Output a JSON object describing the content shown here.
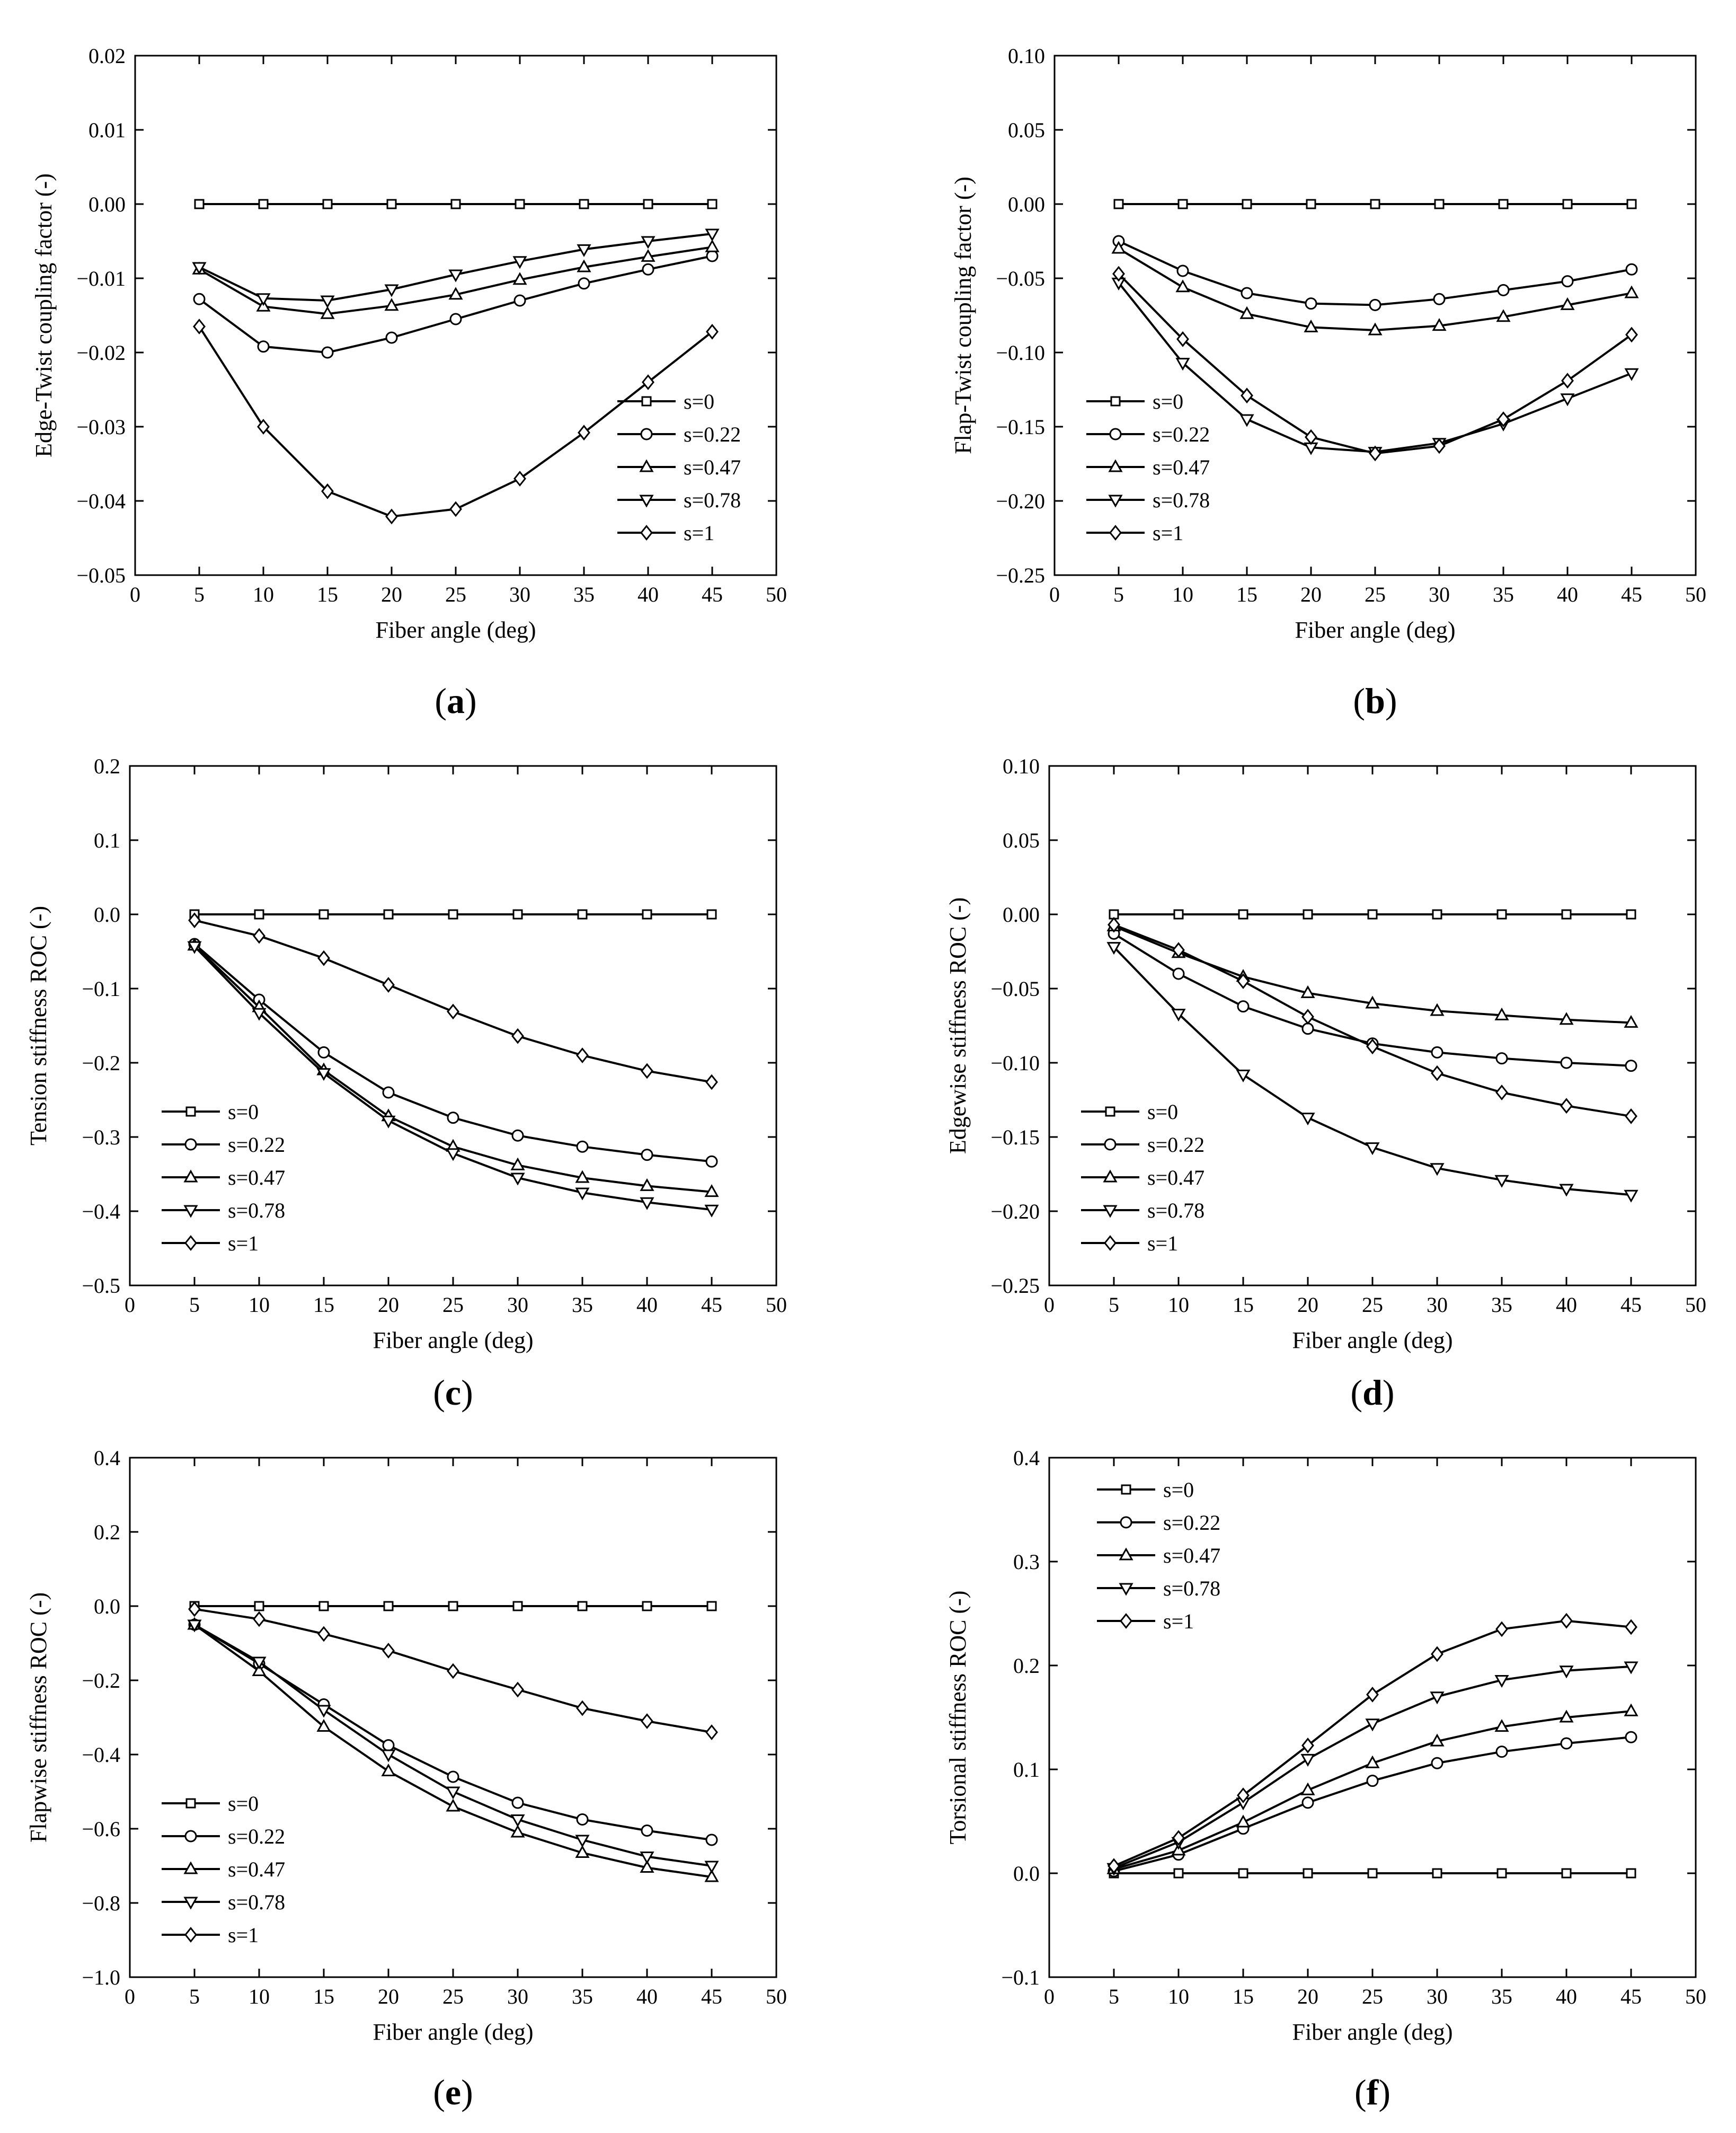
{
  "figure": {
    "series_names": [
      "s=0",
      "s=0.22",
      "s=0.47",
      "s=0.78",
      "s=1"
    ]
  },
  "chart_data": [
    {
      "id": "a",
      "type": "line",
      "panel_label": "a",
      "xlabel": "Fiber angle (deg)",
      "ylabel": "Edge-Twist coupling factor (-)",
      "xlim": [
        0,
        50
      ],
      "ylim": [
        -0.05,
        0.02
      ],
      "xticks": [
        "0",
        "5",
        "10",
        "15",
        "20",
        "25",
        "30",
        "35",
        "40",
        "45",
        "50"
      ],
      "yticks": [
        "0.02",
        "0.01",
        "0.00",
        "−0.01",
        "−0.02",
        "−0.03",
        "−0.04",
        "−0.05"
      ],
      "ytick_values": [
        0.02,
        0.01,
        0.0,
        -0.01,
        -0.02,
        -0.03,
        -0.04,
        -0.05
      ],
      "legend_position": "lower-right",
      "x": [
        5,
        10,
        15,
        20,
        25,
        30,
        35,
        40,
        45
      ],
      "series": [
        {
          "name": "s=0",
          "marker": "square",
          "values": [
            0.0,
            0.0,
            0.0,
            0.0,
            0.0,
            0.0,
            0.0,
            0.0,
            0.0
          ]
        },
        {
          "name": "s=0.22",
          "marker": "circle",
          "values": [
            -0.0128,
            -0.0192,
            -0.02,
            -0.018,
            -0.0155,
            -0.013,
            -0.0107,
            -0.0088,
            -0.007
          ]
        },
        {
          "name": "s=0.47",
          "marker": "triangle-up",
          "values": [
            -0.0088,
            -0.0138,
            -0.0148,
            -0.0137,
            -0.0122,
            -0.0102,
            -0.0085,
            -0.0071,
            -0.0058
          ]
        },
        {
          "name": "s=0.78",
          "marker": "triangle-down",
          "values": [
            -0.0085,
            -0.0127,
            -0.013,
            -0.0115,
            -0.0095,
            -0.0077,
            -0.0061,
            -0.005,
            -0.004
          ]
        },
        {
          "name": "s=1",
          "marker": "diamond",
          "values": [
            -0.0165,
            -0.03,
            -0.0387,
            -0.0421,
            -0.0411,
            -0.037,
            -0.0308,
            -0.024,
            -0.0172
          ]
        }
      ]
    },
    {
      "id": "b",
      "type": "line",
      "panel_label": "b",
      "xlabel": "Fiber angle (deg)",
      "ylabel": "Flap-Twist coupling factor (-)",
      "xlim": [
        0,
        50
      ],
      "ylim": [
        -0.25,
        0.1
      ],
      "xticks": [
        "0",
        "5",
        "10",
        "15",
        "20",
        "25",
        "30",
        "35",
        "40",
        "45",
        "50"
      ],
      "yticks": [
        "0.10",
        "0.05",
        "0.00",
        "−0.05",
        "−0.10",
        "−0.15",
        "−0.20",
        "−0.25"
      ],
      "ytick_values": [
        0.1,
        0.05,
        0.0,
        -0.05,
        -0.1,
        -0.15,
        -0.2,
        -0.25
      ],
      "legend_position": "lower-left",
      "x": [
        5,
        10,
        15,
        20,
        25,
        30,
        35,
        40,
        45
      ],
      "series": [
        {
          "name": "s=0",
          "marker": "square",
          "values": [
            0.0,
            0.0,
            0.0,
            0.0,
            0.0,
            0.0,
            0.0,
            0.0,
            0.0
          ]
        },
        {
          "name": "s=0.22",
          "marker": "circle",
          "values": [
            -0.025,
            -0.045,
            -0.06,
            -0.067,
            -0.068,
            -0.064,
            -0.058,
            -0.052,
            -0.044
          ]
        },
        {
          "name": "s=0.47",
          "marker": "triangle-up",
          "values": [
            -0.03,
            -0.056,
            -0.074,
            -0.083,
            -0.085,
            -0.082,
            -0.076,
            -0.068,
            -0.06
          ]
        },
        {
          "name": "s=0.78",
          "marker": "triangle-down",
          "values": [
            -0.053,
            -0.107,
            -0.145,
            -0.164,
            -0.167,
            -0.161,
            -0.148,
            -0.131,
            -0.114
          ]
        },
        {
          "name": "s=1",
          "marker": "diamond",
          "values": [
            -0.047,
            -0.091,
            -0.129,
            -0.157,
            -0.168,
            -0.163,
            -0.145,
            -0.119,
            -0.088
          ]
        }
      ]
    },
    {
      "id": "c",
      "type": "line",
      "panel_label": "c",
      "xlabel": "Fiber angle (deg)",
      "ylabel": "Tension stiffness ROC (-)",
      "xlim": [
        0,
        50
      ],
      "ylim": [
        -0.5,
        0.2
      ],
      "xticks": [
        "0",
        "5",
        "10",
        "15",
        "20",
        "25",
        "30",
        "35",
        "40",
        "45",
        "50"
      ],
      "yticks": [
        "0.2",
        "0.1",
        "0.0",
        "−0.1",
        "−0.2",
        "−0.3",
        "−0.4",
        "−0.5"
      ],
      "ytick_values": [
        0.2,
        0.1,
        0.0,
        -0.1,
        -0.2,
        -0.3,
        -0.4,
        -0.5
      ],
      "legend_position": "lower-left",
      "x": [
        5,
        10,
        15,
        20,
        25,
        30,
        35,
        40,
        45
      ],
      "series": [
        {
          "name": "s=0",
          "marker": "square",
          "values": [
            0.0,
            0.0,
            0.0,
            0.0,
            0.0,
            0.0,
            0.0,
            0.0,
            0.0
          ]
        },
        {
          "name": "s=0.22",
          "marker": "circle",
          "values": [
            -0.04,
            -0.115,
            -0.186,
            -0.24,
            -0.274,
            -0.298,
            -0.313,
            -0.324,
            -0.333
          ]
        },
        {
          "name": "s=0.47",
          "marker": "triangle-up",
          "values": [
            -0.042,
            -0.125,
            -0.21,
            -0.272,
            -0.313,
            -0.338,
            -0.355,
            -0.366,
            -0.374
          ]
        },
        {
          "name": "s=0.78",
          "marker": "triangle-down",
          "values": [
            -0.043,
            -0.133,
            -0.214,
            -0.278,
            -0.322,
            -0.355,
            -0.375,
            -0.388,
            -0.398
          ]
        },
        {
          "name": "s=1",
          "marker": "diamond",
          "values": [
            -0.008,
            -0.029,
            -0.059,
            -0.095,
            -0.131,
            -0.164,
            -0.19,
            -0.211,
            -0.226
          ]
        }
      ]
    },
    {
      "id": "d",
      "type": "line",
      "panel_label": "d",
      "xlabel": "Fiber angle (deg)",
      "ylabel": "Edgewise stiffness ROC (-)",
      "xlim": [
        0,
        50
      ],
      "ylim": [
        -0.25,
        0.1
      ],
      "xticks": [
        "0",
        "5",
        "10",
        "15",
        "20",
        "25",
        "30",
        "35",
        "40",
        "45",
        "50"
      ],
      "yticks": [
        "0.10",
        "0.05",
        "0.00",
        "−0.05",
        "−0.10",
        "−0.15",
        "−0.20",
        "−0.25"
      ],
      "ytick_values": [
        0.1,
        0.05,
        0.0,
        -0.05,
        -0.1,
        -0.15,
        -0.2,
        -0.25
      ],
      "legend_position": "lower-left",
      "x": [
        5,
        10,
        15,
        20,
        25,
        30,
        35,
        40,
        45
      ],
      "series": [
        {
          "name": "s=0",
          "marker": "square",
          "values": [
            0.0,
            0.0,
            0.0,
            0.0,
            0.0,
            0.0,
            0.0,
            0.0,
            0.0
          ]
        },
        {
          "name": "s=0.22",
          "marker": "circle",
          "values": [
            -0.013,
            -0.04,
            -0.062,
            -0.077,
            -0.087,
            -0.093,
            -0.097,
            -0.1,
            -0.102
          ]
        },
        {
          "name": "s=0.47",
          "marker": "triangle-up",
          "values": [
            -0.008,
            -0.026,
            -0.042,
            -0.053,
            -0.06,
            -0.065,
            -0.068,
            -0.071,
            -0.073
          ]
        },
        {
          "name": "s=0.78",
          "marker": "triangle-down",
          "values": [
            -0.022,
            -0.067,
            -0.108,
            -0.137,
            -0.157,
            -0.171,
            -0.179,
            -0.185,
            -0.189
          ]
        },
        {
          "name": "s=1",
          "marker": "diamond",
          "values": [
            -0.007,
            -0.024,
            -0.045,
            -0.069,
            -0.089,
            -0.107,
            -0.12,
            -0.129,
            -0.136
          ]
        }
      ]
    },
    {
      "id": "e",
      "type": "line",
      "panel_label": "e",
      "xlabel": "Fiber angle (deg)",
      "ylabel": "Flapwise stiffness ROC (-)",
      "xlim": [
        0,
        50
      ],
      "ylim": [
        -1.0,
        0.4
      ],
      "xticks": [
        "0",
        "5",
        "10",
        "15",
        "20",
        "25",
        "30",
        "35",
        "40",
        "45",
        "50"
      ],
      "yticks": [
        "0.4",
        "0.2",
        "0.0",
        "−0.2",
        "−0.4",
        "−0.6",
        "−0.8",
        "−1.0"
      ],
      "ytick_values": [
        0.4,
        0.2,
        0.0,
        -0.2,
        -0.4,
        -0.6,
        -0.8,
        -1.0
      ],
      "legend_position": "lower-left",
      "x": [
        5,
        10,
        15,
        20,
        25,
        30,
        35,
        40,
        45
      ],
      "series": [
        {
          "name": "s=0",
          "marker": "square",
          "values": [
            0.0,
            0.0,
            0.0,
            0.0,
            0.0,
            0.0,
            0.0,
            0.0,
            0.0
          ]
        },
        {
          "name": "s=0.22",
          "marker": "circle",
          "values": [
            -0.05,
            -0.155,
            -0.265,
            -0.375,
            -0.46,
            -0.53,
            -0.575,
            -0.605,
            -0.63
          ]
        },
        {
          "name": "s=0.47",
          "marker": "triangle-up",
          "values": [
            -0.05,
            -0.175,
            -0.325,
            -0.445,
            -0.54,
            -0.61,
            -0.665,
            -0.705,
            -0.73
          ]
        },
        {
          "name": "s=0.78",
          "marker": "triangle-down",
          "values": [
            -0.05,
            -0.15,
            -0.28,
            -0.4,
            -0.5,
            -0.575,
            -0.63,
            -0.675,
            -0.7
          ]
        },
        {
          "name": "s=1",
          "marker": "diamond",
          "values": [
            -0.008,
            -0.035,
            -0.075,
            -0.12,
            -0.175,
            -0.225,
            -0.275,
            -0.31,
            -0.34
          ]
        }
      ]
    },
    {
      "id": "f",
      "type": "line",
      "panel_label": "f",
      "xlabel": "Fiber angle (deg)",
      "ylabel": "Torsional stiffness ROC (-)",
      "xlim": [
        0,
        50
      ],
      "ylim": [
        -0.1,
        0.4
      ],
      "xticks": [
        "0",
        "5",
        "10",
        "15",
        "20",
        "25",
        "30",
        "35",
        "40",
        "45",
        "50"
      ],
      "yticks": [
        "0.4",
        "0.3",
        "0.2",
        "0.1",
        "0.0",
        "−0.1"
      ],
      "ytick_values": [
        0.4,
        0.3,
        0.2,
        0.1,
        0.0,
        -0.1
      ],
      "legend_position": "upper-left",
      "x": [
        5,
        10,
        15,
        20,
        25,
        30,
        35,
        40,
        45
      ],
      "series": [
        {
          "name": "s=0",
          "marker": "square",
          "values": [
            0.0,
            0.0,
            0.0,
            0.0,
            0.0,
            0.0,
            0.0,
            0.0,
            0.0
          ]
        },
        {
          "name": "s=0.22",
          "marker": "circle",
          "values": [
            0.002,
            0.018,
            0.043,
            0.068,
            0.089,
            0.106,
            0.117,
            0.125,
            0.131
          ]
        },
        {
          "name": "s=0.47",
          "marker": "triangle-up",
          "values": [
            0.004,
            0.022,
            0.049,
            0.08,
            0.106,
            0.127,
            0.141,
            0.15,
            0.156
          ]
        },
        {
          "name": "s=0.78",
          "marker": "triangle-down",
          "values": [
            0.005,
            0.03,
            0.068,
            0.11,
            0.144,
            0.17,
            0.186,
            0.195,
            0.199
          ]
        },
        {
          "name": "s=1",
          "marker": "diamond",
          "values": [
            0.007,
            0.034,
            0.075,
            0.123,
            0.172,
            0.211,
            0.235,
            0.243,
            0.237
          ]
        }
      ]
    }
  ]
}
